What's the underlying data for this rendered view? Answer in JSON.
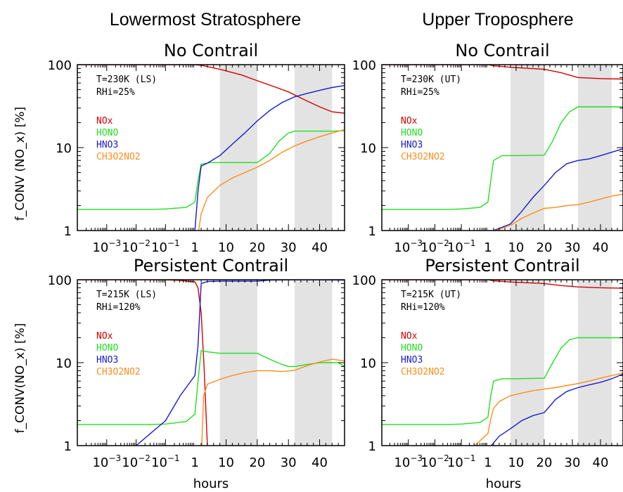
{
  "section_titles": [
    "Lowermost Stratosphere",
    "Upper Troposphere"
  ],
  "xlabel": "hours",
  "ylabels": [
    "f_CONV (NO_x) [%]",
    "f_CONV(NO_x) [%]"
  ],
  "colors": {
    "NOx": "#d40000",
    "HONO": "#22dd22",
    "HNO3": "#1a1acc",
    "CH3O2NO2": "#ff8c1a",
    "shade": "#e3e3e3"
  },
  "chart_data": [
    {
      "type": "line",
      "title": "No Contrail",
      "annotation": [
        "T=230K (LS)",
        "RHi=25%"
      ],
      "xlabel": "hours",
      "ylabel": "f_CONV (NO_x) [%]",
      "yscale": "log",
      "ylim": [
        1,
        100
      ],
      "x_tick_labels": [
        "10^-3",
        "10^-2",
        "10^-1",
        "1",
        "10",
        "20",
        "30",
        "40"
      ],
      "y_tick_labels": [
        "1",
        "10",
        "100"
      ],
      "shaded_hours": [
        [
          8,
          20
        ],
        [
          32,
          44
        ]
      ],
      "series": [
        {
          "name": "NOx",
          "points": [
            [
              -4,
              100
            ],
            [
              -1,
              100
            ],
            [
              0,
              100
            ],
            [
              2,
              98
            ],
            [
              8,
              88
            ],
            [
              15,
              75
            ],
            [
              20,
              64
            ],
            [
              25,
              55
            ],
            [
              30,
              47
            ],
            [
              35,
              38
            ],
            [
              40,
              31
            ],
            [
              44,
              27
            ],
            [
              48,
              26
            ]
          ]
        },
        {
          "name": "HONO",
          "points": [
            [
              -4,
              1.8
            ],
            [
              -1.5,
              1.8
            ],
            [
              -1,
              1.82
            ],
            [
              -0.3,
              1.9
            ],
            [
              0,
              2.2
            ],
            [
              1,
              4
            ],
            [
              2,
              6.3
            ],
            [
              5,
              6.6
            ],
            [
              8,
              6.6
            ],
            [
              20,
              6.6
            ],
            [
              24,
              8.5
            ],
            [
              27,
              12
            ],
            [
              30,
              15
            ],
            [
              32,
              15.8
            ],
            [
              44,
              15.8
            ],
            [
              48,
              16
            ]
          ]
        },
        {
          "name": "HNO3",
          "points": [
            [
              0,
              1
            ],
            [
              1,
              3
            ],
            [
              2,
              6
            ],
            [
              4,
              6.5
            ],
            [
              8,
              8
            ],
            [
              12,
              11
            ],
            [
              16,
              15
            ],
            [
              20,
              21
            ],
            [
              24,
              28
            ],
            [
              28,
              35
            ],
            [
              32,
              41
            ],
            [
              36,
              45
            ],
            [
              40,
              49
            ],
            [
              44,
              53
            ],
            [
              48,
              56
            ]
          ]
        },
        {
          "name": "CH3O2NO2",
          "points": [
            [
              1.2,
              1
            ],
            [
              2,
              1.6
            ],
            [
              4,
              2.5
            ],
            [
              8,
              3.5
            ],
            [
              12,
              4.3
            ],
            [
              16,
              5
            ],
            [
              20,
              5.8
            ],
            [
              24,
              7
            ],
            [
              28,
              8.8
            ],
            [
              32,
              10.5
            ],
            [
              36,
              12
            ],
            [
              40,
              13.5
            ],
            [
              44,
              15
            ],
            [
              48,
              16.5
            ]
          ]
        }
      ]
    },
    {
      "type": "line",
      "title": "No Contrail",
      "annotation": [
        "T=230K (UT)",
        "RHi=25%"
      ],
      "xlabel": "hours",
      "ylabel": "",
      "yscale": "log",
      "ylim": [
        1,
        100
      ],
      "x_tick_labels": [
        "10^-3",
        "10^-2",
        "10^-1",
        "1",
        "10",
        "20",
        "30",
        "40"
      ],
      "y_tick_labels": [
        "1",
        "10",
        "100"
      ],
      "shaded_hours": [
        [
          8,
          20
        ],
        [
          32,
          44
        ]
      ],
      "series": [
        {
          "name": "NOx",
          "points": [
            [
              -4,
              100
            ],
            [
              -1,
              100
            ],
            [
              0,
              100
            ],
            [
              2,
              97
            ],
            [
              8,
              93
            ],
            [
              20,
              88
            ],
            [
              26,
              80
            ],
            [
              32,
              70
            ],
            [
              40,
              68
            ],
            [
              48,
              67
            ]
          ]
        },
        {
          "name": "HONO",
          "points": [
            [
              -4,
              1.8
            ],
            [
              -1.5,
              1.8
            ],
            [
              -1,
              1.82
            ],
            [
              -0.3,
              1.9
            ],
            [
              0,
              2.2
            ],
            [
              1,
              4
            ],
            [
              2,
              7
            ],
            [
              5,
              8
            ],
            [
              8,
              8
            ],
            [
              20,
              8.1
            ],
            [
              23,
              12
            ],
            [
              26,
              20
            ],
            [
              29,
              27
            ],
            [
              32,
              31
            ],
            [
              44,
              31
            ],
            [
              48,
              31
            ]
          ]
        },
        {
          "name": "HNO3",
          "points": [
            [
              2,
              1
            ],
            [
              8,
              1.2
            ],
            [
              12,
              1.7
            ],
            [
              16,
              2.5
            ],
            [
              20,
              3.5
            ],
            [
              24,
              5
            ],
            [
              28,
              6.4
            ],
            [
              32,
              7
            ],
            [
              36,
              7.3
            ],
            [
              40,
              8
            ],
            [
              44,
              8.8
            ],
            [
              48,
              9.7
            ]
          ]
        },
        {
          "name": "CH3O2NO2",
          "points": [
            [
              2,
              0.98
            ],
            [
              8,
              1.15
            ],
            [
              12,
              1.4
            ],
            [
              16,
              1.62
            ],
            [
              20,
              1.85
            ],
            [
              24,
              1.9
            ],
            [
              28,
              2
            ],
            [
              32,
              2.05
            ],
            [
              36,
              2.2
            ],
            [
              40,
              2.4
            ],
            [
              44,
              2.6
            ],
            [
              48,
              2.75
            ]
          ]
        }
      ]
    },
    {
      "type": "line",
      "title": "Persistent Contrail",
      "annotation": [
        "T=215K (LS)",
        "RHi=120%"
      ],
      "xlabel": "hours",
      "ylabel": "f_CONV(NO_x) [%]",
      "yscale": "log",
      "ylim": [
        1,
        100
      ],
      "x_tick_labels": [
        "10^-3",
        "10^-2",
        "10^-1",
        "1",
        "10",
        "20",
        "30",
        "40"
      ],
      "y_tick_labels": [
        "1",
        "10",
        "100"
      ],
      "shaded_hours": [
        [
          8,
          20
        ],
        [
          32,
          44
        ]
      ],
      "series": [
        {
          "name": "NOx",
          "points": [
            [
              -4,
              100
            ],
            [
              -1,
              100
            ],
            [
              -0.5,
              98
            ],
            [
              0,
              94
            ],
            [
              1,
              80
            ],
            [
              2,
              40
            ],
            [
              3,
              8
            ],
            [
              4,
              1
            ]
          ]
        },
        {
          "name": "HONO",
          "points": [
            [
              -4,
              1.8
            ],
            [
              -1.5,
              1.8
            ],
            [
              -1,
              1.82
            ],
            [
              -0.3,
              1.95
            ],
            [
              0,
              2.4
            ],
            [
              1,
              6
            ],
            [
              2,
              14
            ],
            [
              4,
              13.5
            ],
            [
              8,
              13
            ],
            [
              16,
              13
            ],
            [
              20,
              13
            ],
            [
              24,
              11
            ],
            [
              28,
              9.5
            ],
            [
              30,
              9
            ],
            [
              32,
              9
            ],
            [
              36,
              9.5
            ],
            [
              40,
              10
            ],
            [
              44,
              10
            ],
            [
              46,
              10
            ],
            [
              48,
              9
            ]
          ]
        },
        {
          "name": "HNO3",
          "points": [
            [
              -2,
              1
            ],
            [
              -1,
              2
            ],
            [
              -0.5,
              4
            ],
            [
              0,
              7
            ],
            [
              1,
              16
            ],
            [
              2,
              90
            ],
            [
              4,
              95
            ],
            [
              8,
              96
            ],
            [
              16,
              96
            ],
            [
              20,
              96
            ],
            [
              24,
              99
            ],
            [
              32,
              100
            ],
            [
              40,
              100
            ],
            [
              48,
              99
            ]
          ]
        },
        {
          "name": "CH3O2NO2",
          "points": [
            [
              2.2,
              1
            ],
            [
              2.8,
              4
            ],
            [
              4,
              5.5
            ],
            [
              8,
              6.3
            ],
            [
              12,
              7
            ],
            [
              16,
              7.6
            ],
            [
              20,
              8
            ],
            [
              24,
              8
            ],
            [
              28,
              7.8
            ],
            [
              32,
              8.1
            ],
            [
              36,
              9.2
            ],
            [
              40,
              10.2
            ],
            [
              44,
              11
            ],
            [
              48,
              10.5
            ]
          ]
        }
      ]
    },
    {
      "type": "line",
      "title": "Persistent Contrail",
      "annotation": [
        "T=215K (UT)",
        "RHi=120%"
      ],
      "xlabel": "hours",
      "ylabel": "",
      "yscale": "log",
      "ylim": [
        1,
        100
      ],
      "x_tick_labels": [
        "10^-3",
        "10^-2",
        "10^-1",
        "1",
        "10",
        "20",
        "30",
        "40"
      ],
      "y_tick_labels": [
        "1",
        "10",
        "100"
      ],
      "shaded_hours": [
        [
          8,
          20
        ],
        [
          32,
          44
        ]
      ],
      "series": [
        {
          "name": "NOx",
          "points": [
            [
              -4,
              100
            ],
            [
              -1,
              100
            ],
            [
              0,
              100
            ],
            [
              2,
              97
            ],
            [
              8,
              94
            ],
            [
              20,
              90
            ],
            [
              26,
              85
            ],
            [
              32,
              82
            ],
            [
              40,
              80
            ],
            [
              48,
              79
            ]
          ]
        },
        {
          "name": "HONO",
          "points": [
            [
              -4,
              1.8
            ],
            [
              -1.5,
              1.8
            ],
            [
              -1,
              1.82
            ],
            [
              -0.3,
              1.9
            ],
            [
              0,
              2.2
            ],
            [
              1,
              4
            ],
            [
              2,
              6
            ],
            [
              5,
              6.4
            ],
            [
              8,
              6.4
            ],
            [
              20,
              6.5
            ],
            [
              23,
              10
            ],
            [
              26,
              15
            ],
            [
              29,
              19
            ],
            [
              32,
              20
            ],
            [
              44,
              20
            ],
            [
              48,
              20
            ]
          ]
        },
        {
          "name": "HNO3",
          "points": [
            [
              1,
              0.98
            ],
            [
              4,
              1.3
            ],
            [
              8,
              1.6
            ],
            [
              12,
              2
            ],
            [
              16,
              2.3
            ],
            [
              20,
              2.5
            ],
            [
              24,
              3.6
            ],
            [
              28,
              4.5
            ],
            [
              32,
              5
            ],
            [
              36,
              5.4
            ],
            [
              40,
              5.8
            ],
            [
              44,
              6.4
            ],
            [
              48,
              7.3
            ]
          ]
        },
        {
          "name": "CH3O2NO2",
          "points": [
            [
              -0.5,
              1
            ],
            [
              0,
              1.4
            ],
            [
              1,
              2.1
            ],
            [
              2,
              2.8
            ],
            [
              4,
              3.4
            ],
            [
              8,
              4
            ],
            [
              12,
              4.3
            ],
            [
              16,
              4.6
            ],
            [
              20,
              4.8
            ],
            [
              24,
              5
            ],
            [
              28,
              5.3
            ],
            [
              32,
              5.6
            ],
            [
              36,
              6
            ],
            [
              40,
              6.5
            ],
            [
              44,
              7
            ],
            [
              48,
              7.5
            ]
          ]
        }
      ]
    }
  ]
}
